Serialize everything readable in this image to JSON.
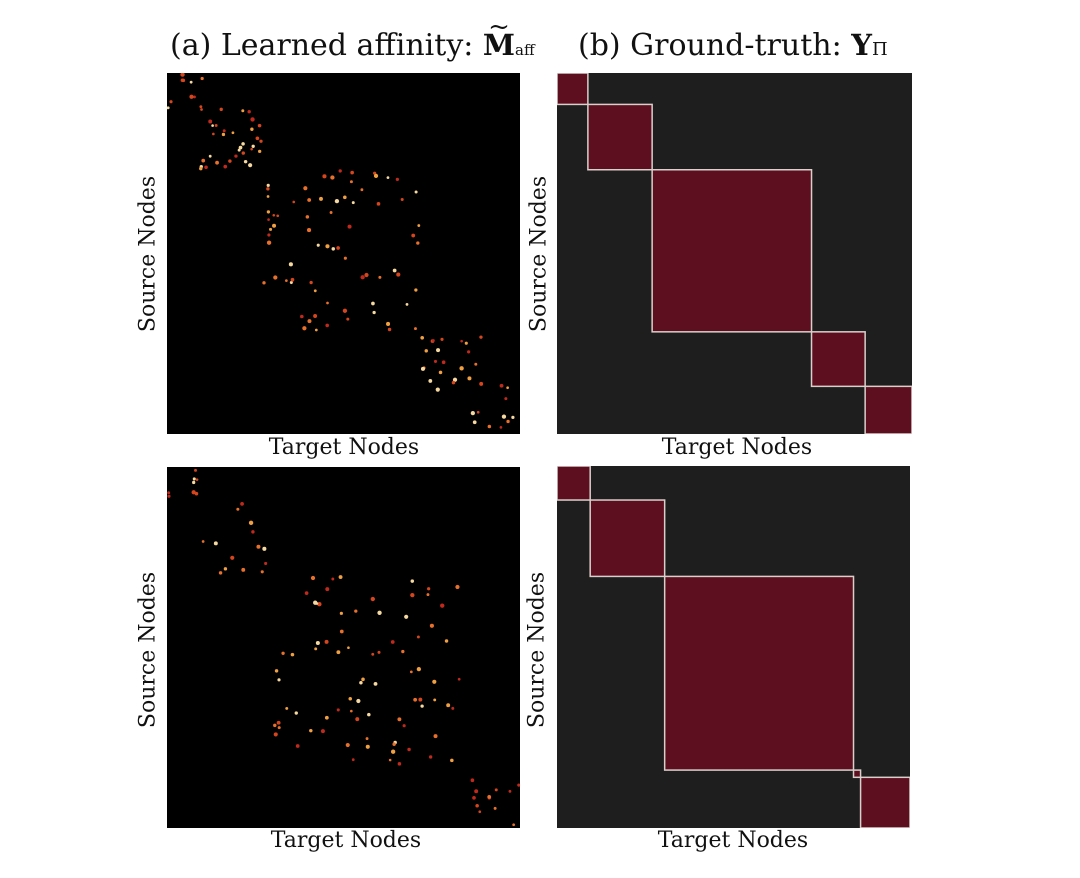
{
  "titles": {
    "a_prefix": "(a) Learned affinity:",
    "a_symbol": "M",
    "a_tilde": "~",
    "a_subscript": "aff",
    "b_prefix": "(b) Ground-truth:",
    "b_symbol": "Y",
    "b_subscript": "Π"
  },
  "axis_labels": {
    "x": "Target Nodes",
    "y": "Source Nodes"
  },
  "colors": {
    "affinity_background": "#000000",
    "groundtruth_background": "#1e1e1e",
    "block_fill": "#5e0f1f",
    "block_border_light": "#d9d0cc",
    "block_border_red": "#c94a4a",
    "dot_colors": [
      "#c0291b",
      "#d6451c",
      "#e8702a",
      "#f0a040",
      "#f6d9a0"
    ]
  },
  "panels": {
    "top": {
      "groundtruth_blocks": [
        {
          "start": 0.0,
          "end": 0.087
        },
        {
          "start": 0.087,
          "end": 0.268
        },
        {
          "start": 0.268,
          "end": 0.717
        },
        {
          "start": 0.717,
          "end": 0.868
        },
        {
          "start": 0.868,
          "end": 1.0
        }
      ],
      "affinity_clusters": [
        {
          "start": 0.0,
          "end": 0.11,
          "count": 10
        },
        {
          "start": 0.09,
          "end": 0.27,
          "count": 34
        },
        {
          "start": 0.27,
          "end": 0.72,
          "count": 72
        },
        {
          "start": 0.72,
          "end": 0.9,
          "count": 22
        },
        {
          "start": 0.86,
          "end": 1.0,
          "count": 12
        }
      ]
    },
    "bottom": {
      "groundtruth_blocks": [
        {
          "start": 0.0,
          "end": 0.094
        },
        {
          "start": 0.094,
          "end": 0.305
        },
        {
          "start": 0.305,
          "end": 0.84
        },
        {
          "start": 0.84,
          "end": 0.86
        },
        {
          "start": 0.86,
          "end": 1.0
        }
      ],
      "affinity_clusters": [
        {
          "start": 0.0,
          "end": 0.09,
          "count": 8
        },
        {
          "start": 0.09,
          "end": 0.3,
          "count": 14
        },
        {
          "start": 0.3,
          "end": 0.83,
          "count": 80
        },
        {
          "start": 0.86,
          "end": 1.0,
          "count": 12
        }
      ]
    }
  }
}
